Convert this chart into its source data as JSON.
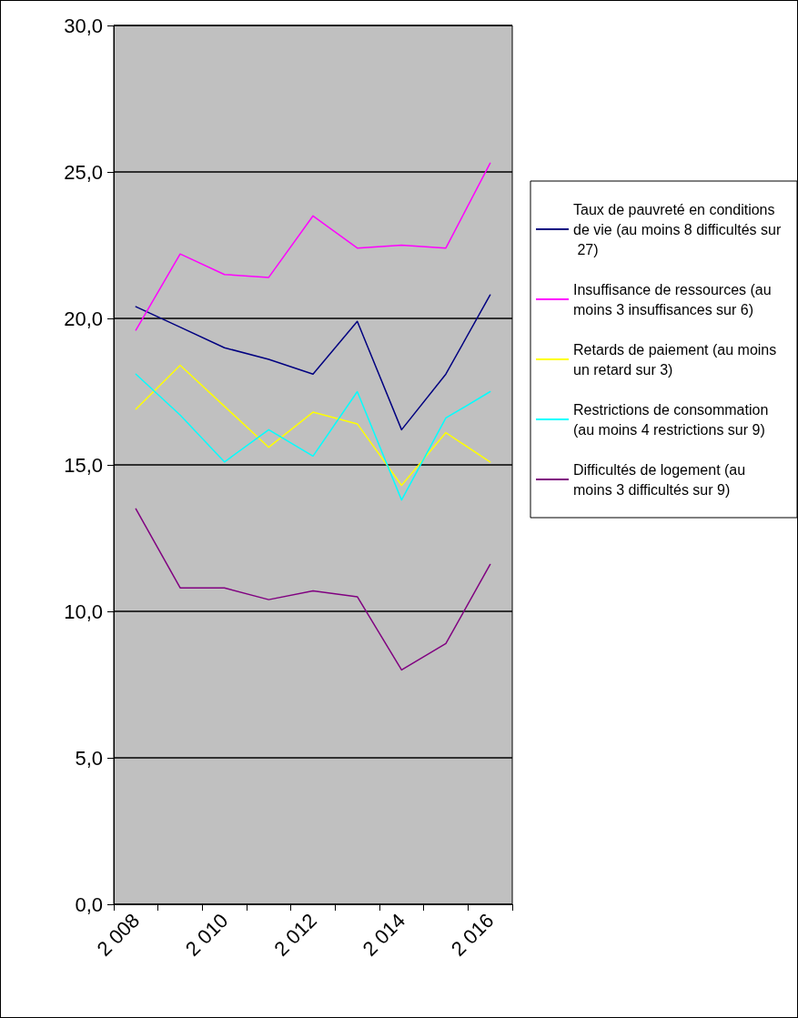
{
  "chart_data": {
    "type": "line",
    "categories": [
      "2 008",
      null,
      "2 010",
      null,
      "2 012",
      null,
      "2 014",
      null,
      "2 016"
    ],
    "series": [
      {
        "name": "Taux de pauvreté en conditions de vie (au moins 8 difficultés sur 27)",
        "color": "#000080",
        "values": [
          20.4,
          19.7,
          19.0,
          18.6,
          18.1,
          19.9,
          16.2,
          18.1,
          20.8
        ]
      },
      {
        "name": "Insuffisance de ressources (au moins 3 insuffisances sur 6)",
        "color": "#ff00ff",
        "values": [
          19.6,
          22.2,
          21.5,
          21.4,
          23.5,
          22.4,
          22.5,
          22.4,
          25.3
        ]
      },
      {
        "name": "Retards de paiement (au moins un retard sur 3)",
        "color": "#ffff00",
        "values": [
          16.9,
          18.4,
          17.0,
          15.6,
          16.8,
          16.4,
          14.3,
          16.1,
          15.1
        ]
      },
      {
        "name": "Restrictions de consommation (au moins 4 restrictions sur 9)",
        "color": "#00ffff",
        "values": [
          18.1,
          16.7,
          15.1,
          16.2,
          15.3,
          17.5,
          13.8,
          16.6,
          17.5
        ]
      },
      {
        "name": "Difficultés de logement (au moins 3 difficultés sur 9)",
        "color": "#800080",
        "values": [
          13.5,
          10.8,
          10.8,
          10.4,
          10.7,
          10.5,
          8.0,
          8.9,
          11.6
        ]
      }
    ],
    "ylim": [
      0,
      30
    ],
    "yticks": [
      {
        "value": 0,
        "label": "0,0"
      },
      {
        "value": 5,
        "label": "5,0"
      },
      {
        "value": 10,
        "label": "10,0"
      },
      {
        "value": 15,
        "label": "15,0"
      },
      {
        "value": 20,
        "label": "20,0"
      },
      {
        "value": 25,
        "label": "25,0"
      },
      {
        "value": 30,
        "label": "30,0"
      }
    ],
    "grid": "y",
    "legend": "right",
    "marker": "none",
    "line_style": "solid"
  }
}
